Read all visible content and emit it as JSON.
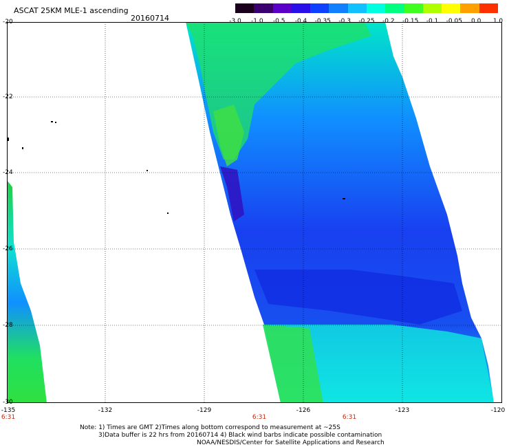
{
  "header": {
    "title": "ASCAT 25KM MLE-1 ascending",
    "date": "20160714"
  },
  "colorbar": {
    "labels": [
      "-3.0",
      "-1.0",
      "-0.5",
      "-0.4",
      "-0.35",
      "-0.3",
      "-0.25",
      "-0.2",
      "-0.15",
      "-0.1",
      "-0.05",
      "0.0",
      "1.0"
    ],
    "colors": [
      "#1a001a",
      "#3a0070",
      "#5a00c8",
      "#2a10e8",
      "#1040ff",
      "#1080ff",
      "#10c0ff",
      "#00ffe0",
      "#00ff80",
      "#40ff20",
      "#b0ff00",
      "#ffff00",
      "#ffa000",
      "#ff3000"
    ]
  },
  "axes": {
    "lat_labels": [
      "-20",
      "-22",
      "-24",
      "-26",
      "-28",
      "-30"
    ],
    "lon_labels": [
      "-135",
      "-132",
      "-129",
      "-126",
      "-123",
      "-120"
    ],
    "time_labels": [
      "6:31",
      "6:31",
      "6:31"
    ]
  },
  "notes": {
    "line1": "Note: 1) Times are GMT 2)Times along bottom correspond to measurement at ~25S",
    "line2": "3)Data buffer is 22 hrs from 20160714 4) Black wind barbs indicate possible contamination",
    "line3": "NOAA/NESDIS/Center for Satellite Applications and Research"
  }
}
